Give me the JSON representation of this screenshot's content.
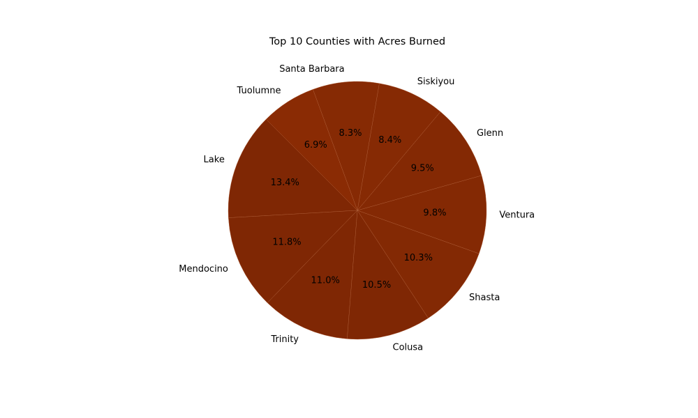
{
  "chart_data": {
    "type": "pie",
    "title": "Top 10 Counties with Acres Burned",
    "categories": [
      "Lake",
      "Mendocino",
      "Trinity",
      "Colusa",
      "Shasta",
      "Ventura",
      "Glenn",
      "Siskiyou",
      "Santa Barbara",
      "Tuolumne"
    ],
    "values": [
      13.4,
      11.8,
      11.0,
      10.5,
      10.3,
      9.8,
      9.5,
      8.4,
      8.3,
      6.9
    ],
    "percent_labels": [
      "13.4%",
      "11.8%",
      "11.0%",
      "10.5%",
      "10.3%",
      "9.8%",
      "9.5%",
      "8.4%",
      "8.3%",
      "6.9%"
    ],
    "colors": [
      "#7f2704",
      "#7f2704",
      "#7f2704",
      "#7f2704",
      "#832904",
      "#842904",
      "#842904",
      "#862a04",
      "#862a04",
      "#8a2b04"
    ],
    "start_angle_deg": 135,
    "direction": "counterclockwise",
    "edge_color": "#b0603a",
    "legend": "none"
  }
}
